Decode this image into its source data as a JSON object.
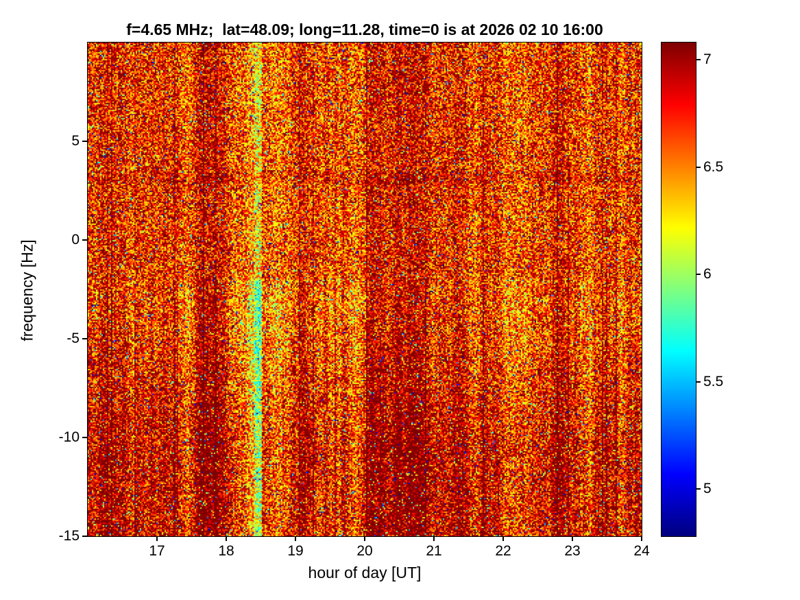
{
  "chart_data": {
    "type": "heatmap",
    "title": "f=4.65 MHz;  lat=48.09; long=11.28, time=0 is at 2026 02 10 16:00",
    "xlabel": "hour of day [UT]",
    "ylabel": "frequency [Hz]",
    "x_range": [
      16,
      24
    ],
    "x_ticks": [
      17,
      18,
      19,
      20,
      21,
      22,
      23,
      24
    ],
    "y_range": [
      -15,
      10
    ],
    "y_ticks": [
      5,
      0,
      -5,
      -10,
      -15
    ],
    "grid": false,
    "legend": "none",
    "colorbar": {
      "position": "right",
      "colormap": "jet",
      "range": [
        4.78,
        7.08
      ],
      "ticks": [
        5,
        5.5,
        6,
        6.5,
        7
      ]
    },
    "appearance": {
      "base_value": 6.8,
      "noise_amplitude": 0.5,
      "low_speckle_probability": 0.03,
      "mid_speckle_probability": 0.035,
      "dark_band_below_hz": -4,
      "light_vertical_band_hour": 18.45,
      "description": "Dense noisy spectrogram, mostly dark-red/orange (values ~6.5-7.1) with scattered green/cyan/blue speckles, dark-red vertical streaks strongest in the lower half, a lighter speckled vertical band near hour 18.45, and darker values below -4 Hz."
    }
  }
}
